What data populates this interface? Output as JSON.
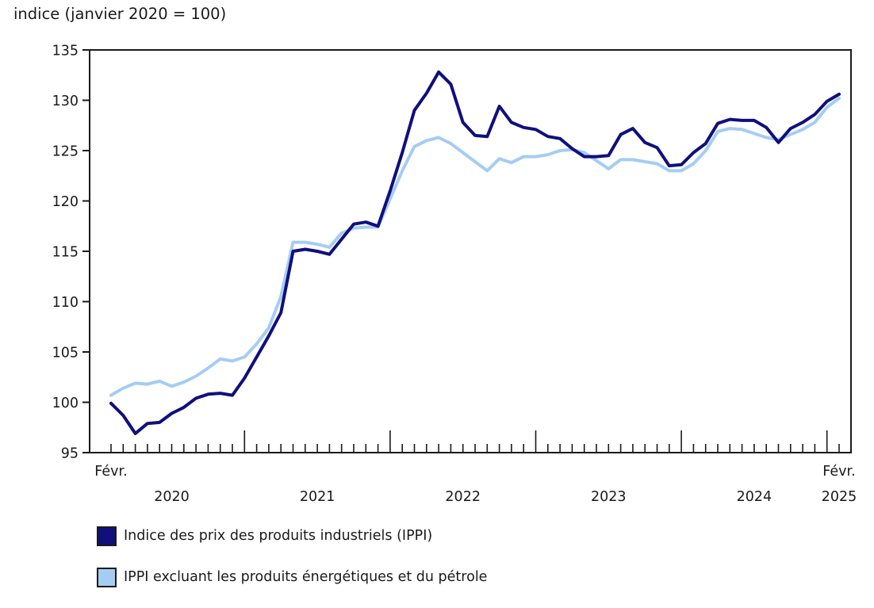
{
  "title": "indice (janvier 2020 = 100)",
  "chart_data": {
    "type": "line",
    "title": "indice (janvier 2020 = 100)",
    "x_axis": {
      "start_label": "Févr.",
      "end_label": "Févr.",
      "end_year_label": "2025",
      "year_labels": [
        "2020",
        "2021",
        "2022",
        "2023",
        "2024"
      ],
      "months_start": "2020-02",
      "months_end": "2025-02",
      "minor_tick_every_month": true,
      "major_tick_on_january": true
    },
    "y_axis": {
      "ylim": [
        95,
        135
      ],
      "tick_step": 5,
      "ticks": [
        95,
        100,
        105,
        110,
        115,
        120,
        125,
        130,
        135
      ]
    },
    "grid": "off",
    "legend_position": "bottom-left",
    "axis_color": "#1a1a1a",
    "series": [
      {
        "name": "Indice des prix des produits industriels (IPPI)",
        "color": "#0f0f7d",
        "values": [
          99.9,
          98.7,
          96.9,
          97.9,
          98.0,
          98.9,
          99.5,
          100.4,
          100.8,
          100.9,
          100.7,
          102.4,
          104.5,
          106.6,
          108.9,
          115.0,
          115.2,
          115.0,
          114.7,
          116.2,
          117.7,
          117.9,
          117.5,
          121.0,
          124.8,
          129.0,
          130.7,
          132.8,
          131.6,
          127.8,
          126.5,
          126.4,
          129.4,
          127.8,
          127.3,
          127.1,
          126.4,
          126.2,
          125.2,
          124.4,
          124.4,
          124.5,
          126.6,
          127.2,
          125.8,
          125.3,
          123.5,
          123.6,
          124.8,
          125.7,
          127.7,
          128.1,
          128.0,
          128.0,
          127.3,
          125.8,
          127.2,
          127.8,
          128.6,
          129.9,
          130.6
        ]
      },
      {
        "name": "IPPI excluant les produits énergétiques et du pétrole",
        "color": "#a5cdf3",
        "values": [
          100.7,
          101.4,
          101.9,
          101.8,
          102.1,
          101.6,
          102.0,
          102.6,
          103.4,
          104.3,
          104.1,
          104.5,
          105.8,
          107.4,
          110.5,
          115.9,
          115.9,
          115.7,
          115.4,
          116.8,
          117.3,
          117.4,
          117.4,
          120.2,
          123.0,
          125.4,
          126.0,
          126.3,
          125.7,
          124.8,
          123.9,
          123.0,
          124.2,
          123.8,
          124.4,
          124.4,
          124.6,
          125.0,
          125.1,
          124.8,
          124.0,
          123.2,
          124.1,
          124.1,
          123.9,
          123.7,
          123.0,
          123.0,
          123.7,
          125.0,
          126.9,
          127.2,
          127.1,
          126.7,
          126.3,
          126.1,
          126.6,
          127.1,
          127.8,
          129.3,
          130.2
        ]
      }
    ]
  }
}
